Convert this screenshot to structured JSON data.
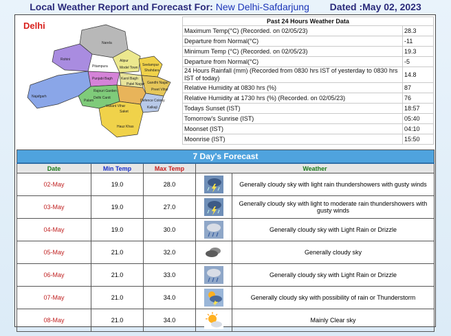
{
  "header": {
    "title": "Local Weather Report and Forecast For:",
    "location": "New Delhi-Safdarjung",
    "dated": "Dated :May 02, 2023"
  },
  "map": {
    "title": "Delhi",
    "labels": [
      "Narela",
      "Rohini",
      "Alipur",
      "Model Town",
      "Seelampur",
      "Shahdara",
      "Seema Puri",
      "Pitampura",
      "Punjabi Bagh",
      "Kalkaji",
      "Karol Bagh",
      "Patel Nagar",
      "Sadar Bazar",
      "Gandhi Nagar",
      "Preet Vihar",
      "Najafgarh",
      "Rajouri Garden",
      "Delhi Cantt",
      "Defence Colony",
      "Palam",
      "Vasant Vihar",
      "Saket",
      "Hauz Khas",
      "Mehrauli",
      "Kalkaji",
      "Vivek Vihar",
      "Shahdara"
    ]
  },
  "past24": {
    "title": "Past 24 Hours Weather Data",
    "rows": [
      {
        "label": "Maximum Temp(°C) (Recorded. on 02/05/23)",
        "value": "28.3"
      },
      {
        "label": "Departure from Normal(°C)",
        "value": "-11"
      },
      {
        "label": "Minimum Temp (°C) (Recorded. on 02/05/23)",
        "value": "19.3"
      },
      {
        "label": "Departure from Normal(°C)",
        "value": "-5"
      },
      {
        "label": "24 Hours Rainfall (mm) (Recorded from 0830 hrs IST of yesterday to 0830 hrs IST of today)",
        "value": "14.8"
      },
      {
        "label": "Relative Humidity at 0830 hrs (%)",
        "value": "87"
      },
      {
        "label": "Relative Humidity at 1730 hrs (%) (Recorded. on 02/05/23)",
        "value": "76"
      },
      {
        "label": "Todays Sunset (IST)",
        "value": "18:57"
      },
      {
        "label": "Tomorrow's Sunrise (IST)",
        "value": "05:40"
      },
      {
        "label": "Moonset (IST)",
        "value": "04:10"
      },
      {
        "label": "Moonrise (IST)",
        "value": "15:50"
      }
    ]
  },
  "forecast": {
    "title": "7 Day's Forecast",
    "columns": {
      "date": "Date",
      "min": "Min Temp",
      "max": "Max Temp",
      "weather": "Weather"
    },
    "rows": [
      {
        "date": "02-May",
        "min": "19.0",
        "max": "28.0",
        "icon": "thunder-rain-icon",
        "weather": "Generally cloudy sky with light rain thundershowers with gusty winds"
      },
      {
        "date": "03-May",
        "min": "19.0",
        "max": "27.0",
        "icon": "thunder-rain-icon",
        "weather": "Generally cloudy sky with light to moderate rain thundershowers with gusty winds"
      },
      {
        "date": "04-May",
        "min": "19.0",
        "max": "30.0",
        "icon": "rain-cloud-icon",
        "weather": "Generally cloudy sky with Light Rain or Drizzle"
      },
      {
        "date": "05-May",
        "min": "21.0",
        "max": "32.0",
        "icon": "cloudy-icon",
        "weather": "Generally cloudy sky"
      },
      {
        "date": "06-May",
        "min": "21.0",
        "max": "33.0",
        "icon": "rain-cloud-icon",
        "weather": "Generally cloudy sky with Light Rain or Drizzle"
      },
      {
        "date": "07-May",
        "min": "21.0",
        "max": "34.0",
        "icon": "sun-thunder-icon",
        "weather": "Generally cloudy sky with possibility of rain or Thunderstorm"
      },
      {
        "date": "08-May",
        "min": "21.0",
        "max": "34.0",
        "icon": "sun-cloud-icon",
        "weather": "Mainly Clear sky"
      }
    ]
  }
}
